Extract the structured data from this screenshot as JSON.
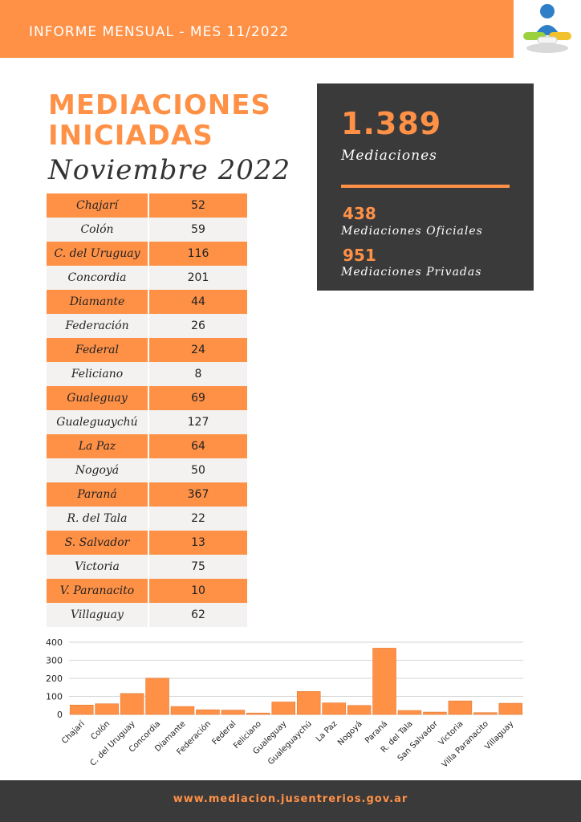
{
  "header": {
    "title": "INFORME MENSUAL - MES 11/2022",
    "logo_icon": "mediation-handshake-logo-icon"
  },
  "title": {
    "line1": "MEDIACIONES",
    "line2": "INICIADAS",
    "subtitle": "Noviembre 2022"
  },
  "summary": {
    "total_value": "1.389",
    "total_label": "Mediaciones",
    "oficiales_value": "438",
    "oficiales_label": "Mediaciones Oficiales",
    "privadas_value": "951",
    "privadas_label": "Mediaciones Privadas"
  },
  "table": {
    "rows": [
      {
        "name": "Chajarí",
        "value": "52"
      },
      {
        "name": "Colón",
        "value": "59"
      },
      {
        "name": "C. del Uruguay",
        "value": "116"
      },
      {
        "name": "Concordia",
        "value": "201"
      },
      {
        "name": "Diamante",
        "value": "44"
      },
      {
        "name": "Federación",
        "value": "26"
      },
      {
        "name": "Federal",
        "value": "24"
      },
      {
        "name": "Feliciano",
        "value": "8"
      },
      {
        "name": "Gualeguay",
        "value": "69"
      },
      {
        "name": "Gualeguaychú",
        "value": "127"
      },
      {
        "name": "La Paz",
        "value": "64"
      },
      {
        "name": "Nogoyá",
        "value": "50"
      },
      {
        "name": "Paraná",
        "value": "367"
      },
      {
        "name": "R. del Tala",
        "value": "22"
      },
      {
        "name": "S. Salvador",
        "value": "13"
      },
      {
        "name": "Victoria",
        "value": "75"
      },
      {
        "name": "V. Paranacito",
        "value": "10"
      },
      {
        "name": "Villaguay",
        "value": "62"
      }
    ]
  },
  "chart_data": {
    "type": "bar",
    "categories": [
      "Chajarí",
      "Colón",
      "C. del Uruguay",
      "Concordia",
      "Diamante",
      "Federación",
      "Federal",
      "Feliciano",
      "Gualeguay",
      "Gualeguaychú",
      "La Paz",
      "Nogoyá",
      "Paraná",
      "R. del Tala",
      "San Salvador",
      "Victoria",
      "Villa Paranacito",
      "Villaguay"
    ],
    "values": [
      52,
      59,
      116,
      201,
      44,
      26,
      24,
      8,
      69,
      127,
      64,
      50,
      367,
      22,
      13,
      75,
      10,
      62
    ],
    "ylim": [
      0,
      400
    ],
    "yticks": [
      0,
      100,
      200,
      300,
      400
    ],
    "grid": true,
    "bar_color": "#ff9147"
  },
  "footer": {
    "url": "www.mediacion.jusentrerios.gov.ar"
  },
  "colors": {
    "accent": "#ff9147",
    "dark": "#3a3a3a",
    "light_row": "#f4f2f1"
  }
}
